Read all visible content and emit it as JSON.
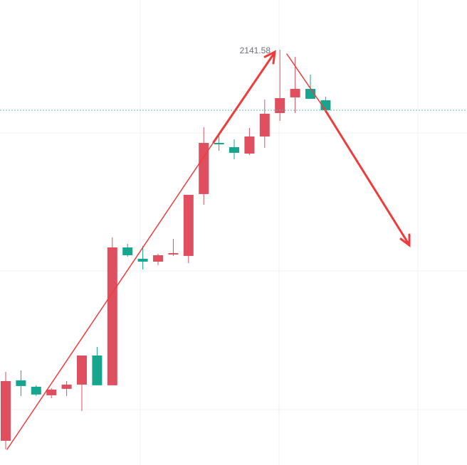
{
  "chart_data": {
    "type": "candlestick",
    "up_color": "#e04f5f",
    "down_color": "#16a68f",
    "ylim": [
      2081.37,
      2148.8
    ],
    "open": [
      2084.88,
      2093.65,
      2092.72,
      2091.48,
      2092.41,
      2093.03,
      2097.25,
      2092.93,
      2112.92,
      2111.28,
      2110.86,
      2111.89,
      2111.69,
      2120.66,
      2128.08,
      2127.46,
      2126.53,
      2129.01,
      2132.41,
      2134.68,
      2135.91,
      2134.26
    ],
    "high": [
      2094.88,
      2095.09,
      2092.93,
      2092.51,
      2093.54,
      2097.25,
      2098.49,
      2114.37,
      2113.44,
      2113.13,
      2112.0,
      2114.16,
      2120.55,
      2130.35,
      2129.32,
      2128.59,
      2130.24,
      2134.37,
      2141.58,
      2140.55,
      2137.98,
      2134.78
    ],
    "low": [
      2083.65,
      2091.38,
      2091.38,
      2091.07,
      2091.38,
      2089.21,
      2092.93,
      2092.93,
      2111.58,
      2109.73,
      2110.35,
      2111.69,
      2110.66,
      2119.11,
      2126.94,
      2125.71,
      2126.33,
      2127.36,
      2131.27,
      2132.41,
      2134.47,
      2132.41
    ],
    "close": [
      2093.54,
      2092.82,
      2091.59,
      2092.31,
      2093.03,
      2097.25,
      2092.93,
      2112.92,
      2111.79,
      2110.86,
      2111.79,
      2112.1,
      2120.55,
      2128.08,
      2127.87,
      2126.64,
      2129.01,
      2132.31,
      2134.57,
      2135.91,
      2134.47,
      2132.82
    ]
  }
}
